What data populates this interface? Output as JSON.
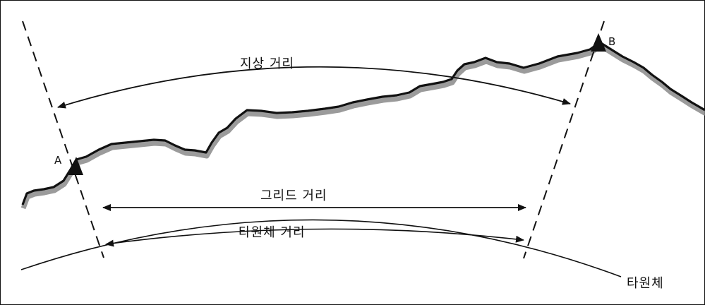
{
  "labels": {
    "ground_distance": "지상 거리",
    "grid_distance": "그리드 거리",
    "ellipsoid_distance": "타원체 거리",
    "ellipsoid": "타원체"
  },
  "points": {
    "a": "A",
    "b": "B"
  },
  "colors": {
    "line": "#111111",
    "terrain_shadow": "#8a8a8a",
    "background": "#ffffff"
  }
}
